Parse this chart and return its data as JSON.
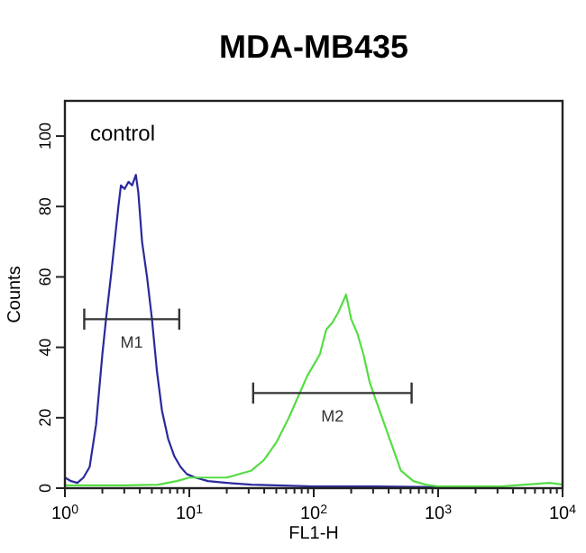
{
  "chart_data": {
    "type": "line",
    "title": "MDA-MB435",
    "xlabel": "FL1-H",
    "ylabel": "Counts",
    "annotations": [
      "control"
    ],
    "log": "x",
    "legend": false,
    "marker": "none",
    "line_style": "solid",
    "grid": false,
    "xlim": [
      1,
      10000
    ],
    "ylim": [
      0,
      110
    ],
    "xticks": [
      {
        "value": 1,
        "label": "10$^{0}$"
      },
      {
        "value": 2,
        "label": null
      },
      {
        "value": 3,
        "label": null
      },
      {
        "value": 4,
        "label": null
      },
      {
        "value": 5,
        "label": null
      },
      {
        "value": 6,
        "label": null
      },
      {
        "value": 7,
        "label": null
      },
      {
        "value": 8,
        "label": null
      },
      {
        "value": 9,
        "label": null
      },
      {
        "value": 10,
        "label": "10$^{1}$"
      },
      {
        "value": 20,
        "label": null
      },
      {
        "value": 30,
        "label": null
      },
      {
        "value": 40,
        "label": null
      },
      {
        "value": 50,
        "label": null
      },
      {
        "value": 60,
        "label": null
      },
      {
        "value": 70,
        "label": null
      },
      {
        "value": 80,
        "label": null
      },
      {
        "value": 90,
        "label": null
      },
      {
        "value": 100,
        "label": "10$^{2}$"
      },
      {
        "value": 200,
        "label": null
      },
      {
        "value": 300,
        "label": null
      },
      {
        "value": 400,
        "label": null
      },
      {
        "value": 500,
        "label": null
      },
      {
        "value": 600,
        "label": null
      },
      {
        "value": 700,
        "label": null
      },
      {
        "value": 800,
        "label": null
      },
      {
        "value": 900,
        "label": null
      },
      {
        "value": 1000,
        "label": "10$^{3}$"
      },
      {
        "value": 2000,
        "label": null
      },
      {
        "value": 3000,
        "label": null
      },
      {
        "value": 4000,
        "label": null
      },
      {
        "value": 5000,
        "label": null
      },
      {
        "value": 6000,
        "label": null
      },
      {
        "value": 7000,
        "label": null
      },
      {
        "value": 8000,
        "label": null
      },
      {
        "value": 9000,
        "label": null
      },
      {
        "value": 10000,
        "label": "10$^{4}$"
      }
    ],
    "yticks": [
      0,
      20,
      40,
      60,
      80,
      100
    ],
    "series": [
      {
        "color": "#2a2a9c",
        "x": [
          1,
          1.12,
          1.26,
          1.41,
          1.58,
          1.78,
          2.0,
          2.14,
          2.34,
          2.51,
          2.69,
          2.82,
          3.02,
          3.24,
          3.47,
          3.72,
          3.89,
          4.17,
          4.57,
          5.01,
          5.5,
          6.03,
          6.76,
          7.59,
          8.51,
          9.55,
          11.2,
          14.1,
          20,
          31.6,
          100,
          316,
          1000,
          3160,
          10000
        ],
        "values": [
          3,
          2,
          1.5,
          3,
          6,
          18,
          38,
          48,
          60,
          70,
          80,
          86,
          85,
          87,
          86,
          89,
          84,
          70,
          60,
          48,
          33,
          22,
          14,
          9,
          6,
          4,
          3,
          2,
          1.5,
          1,
          0.5,
          0.5,
          0.3,
          0,
          0
        ]
      },
      {
        "color": "#55dd44",
        "x": [
          1,
          3.16,
          5.62,
          7.94,
          10,
          12.6,
          20,
          31.6,
          39.8,
          50.1,
          63.1,
          79.4,
          89.1,
          100,
          112,
          126,
          141,
          158,
          182,
          200,
          224,
          251,
          282,
          316,
          355,
          398,
          447,
          501,
          631,
          794,
          1000,
          3160,
          7940,
          10000
        ],
        "values": [
          0.8,
          0.8,
          1,
          2,
          3,
          3,
          3,
          5,
          8,
          13,
          20,
          28,
          32,
          35,
          38,
          45,
          47,
          50,
          55,
          48,
          44,
          38,
          30,
          25,
          20,
          15,
          10,
          5,
          2,
          1,
          0.5,
          0.5,
          1.5,
          1
        ]
      },
      {
        "name": "M1",
        "color": "#333333",
        "x": [
          1.43,
          8.3
        ],
        "values": [
          48,
          48
        ],
        "errors": [
          3,
          3
        ]
      },
      {
        "name": "M2",
        "color": "#333333",
        "x": [
          32.6,
          612
        ],
        "values": [
          27,
          27
        ],
        "errors": [
          3,
          3
        ]
      }
    ]
  }
}
